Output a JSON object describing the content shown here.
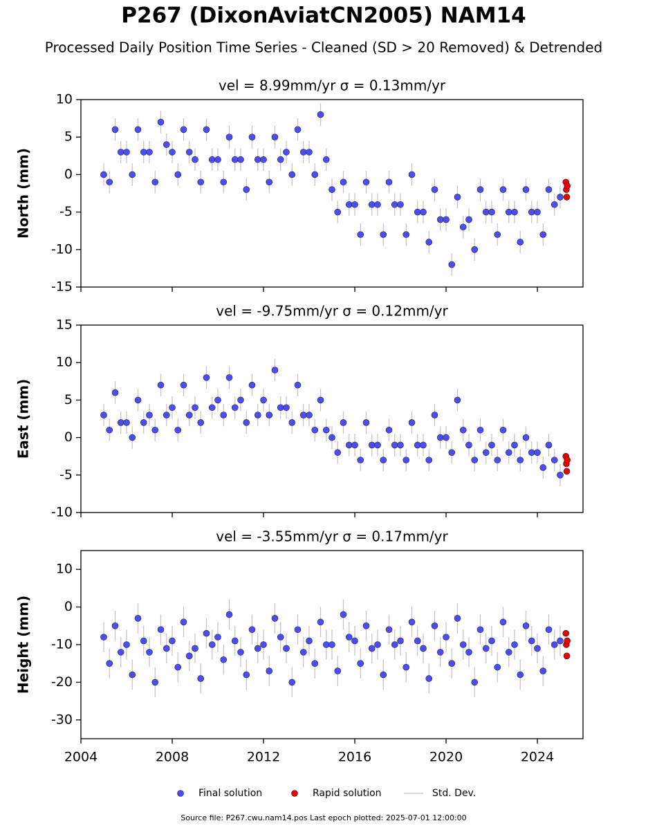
{
  "title": "P267 (DixonAviatCN2005) NAM14",
  "subtitle": "Processed Daily Position Time Series - Cleaned (SD > 20 Removed) & Detrended",
  "footer": "Source file: P267.cwu.nam14.pos  Last epoch plotted: 2025-07-01 12:00:00",
  "chart_data": [
    {
      "type": "scatter",
      "title": "vel = 8.99mm/yr   σ = 0.13mm/yr",
      "ylabel": "North (mm)",
      "xlim": [
        2004,
        2026
      ],
      "xticks": [
        2004,
        2008,
        2012,
        2016,
        2020,
        2024
      ],
      "ylim": [
        -15,
        10
      ],
      "yticks": [
        -15,
        -10,
        -5,
        0,
        5,
        10
      ],
      "series": [
        {
          "name": "Final solution",
          "color": "#4c4cff",
          "error_label": "Std. Dev.",
          "x": [
            2005,
            2005.25,
            2005.5,
            2005.75,
            2006,
            2006.25,
            2006.5,
            2006.75,
            2007,
            2007.25,
            2007.5,
            2007.75,
            2008,
            2008.25,
            2008.5,
            2008.75,
            2009,
            2009.25,
            2009.5,
            2009.75,
            2010,
            2010.25,
            2010.5,
            2010.75,
            2011,
            2011.25,
            2011.5,
            2011.75,
            2012,
            2012.25,
            2012.5,
            2012.75,
            2013,
            2013.25,
            2013.5,
            2013.75,
            2014,
            2014.25,
            2014.5,
            2014.75,
            2015,
            2015.25,
            2015.5,
            2015.75,
            2016,
            2016.25,
            2016.5,
            2016.75,
            2017,
            2017.25,
            2017.5,
            2017.75,
            2018,
            2018.25,
            2018.5,
            2018.75,
            2019,
            2019.25,
            2019.5,
            2019.75,
            2020,
            2020.25,
            2020.5,
            2020.75,
            2021,
            2021.25,
            2021.5,
            2021.75,
            2022,
            2022.25,
            2022.5,
            2022.75,
            2023,
            2023.25,
            2023.5,
            2023.75,
            2024,
            2024.25,
            2024.5,
            2024.75,
            2025
          ],
          "values": [
            0,
            -1,
            6,
            3,
            3,
            0,
            6,
            3,
            3,
            -1,
            7,
            4,
            3,
            0,
            6,
            3,
            2,
            -1,
            6,
            2,
            2,
            -1,
            5,
            2,
            2,
            -2,
            5,
            2,
            2,
            -1,
            5,
            2,
            3,
            0,
            6,
            3,
            3,
            0,
            8,
            2,
            -2,
            -5,
            -1,
            -4,
            -4,
            -8,
            -1,
            -4,
            -4,
            -8,
            -1,
            -4,
            -4,
            -8,
            0,
            -5,
            -5,
            -9,
            -2,
            -6,
            -6,
            -12,
            -3,
            -7,
            -6,
            -10,
            -2,
            -5,
            -5,
            -8,
            -2,
            -5,
            -5,
            -9,
            -2,
            -5,
            -5,
            -8,
            -2,
            -4,
            -3
          ],
          "errors": [
            1.5,
            1.5,
            1.5,
            1.5,
            1.5,
            1.5,
            1.5,
            1.5,
            1.5,
            1.5,
            1.5,
            1.5,
            1.5,
            1.5,
            1.5,
            1.5,
            1.5,
            1.5,
            1.5,
            1.5,
            1.5,
            1.5,
            1.5,
            1.5,
            1.5,
            1.5,
            1.5,
            1.5,
            1.5,
            1.5,
            1.5,
            1.5,
            1.5,
            1.5,
            1.5,
            1.5,
            1.5,
            1.5,
            1.5,
            1.5,
            1.5,
            1.5,
            1.5,
            1.5,
            1.5,
            1.5,
            1.5,
            1.5,
            1.5,
            1.5,
            1.5,
            1.5,
            1.5,
            1.5,
            1.5,
            1.5,
            1.5,
            1.5,
            1.5,
            1.5,
            1.5,
            1.5,
            1.5,
            1.5,
            1.5,
            1.5,
            1.5,
            1.5,
            1.5,
            1.5,
            1.5,
            1.5,
            1.5,
            1.5,
            1.5,
            1.5,
            1.5,
            1.5,
            1.5,
            1.5,
            1.5
          ]
        },
        {
          "name": "Rapid solution",
          "color": "#ee0000",
          "x": [
            2025.25,
            2025.27,
            2025.29,
            2025.31
          ],
          "values": [
            -1,
            -2,
            -3,
            -1.5
          ]
        }
      ]
    },
    {
      "type": "scatter",
      "title": "vel = -9.75mm/yr   σ = 0.12mm/yr",
      "ylabel": "East (mm)",
      "xlim": [
        2004,
        2026
      ],
      "xticks": [
        2004,
        2008,
        2012,
        2016,
        2020,
        2024
      ],
      "ylim": [
        -10,
        15
      ],
      "yticks": [
        -10,
        -5,
        0,
        5,
        10,
        15
      ],
      "series": [
        {
          "color": "#4c4cff",
          "x": [
            2005,
            2005.25,
            2005.5,
            2005.75,
            2006,
            2006.25,
            2006.5,
            2006.75,
            2007,
            2007.25,
            2007.5,
            2007.75,
            2008,
            2008.25,
            2008.5,
            2008.75,
            2009,
            2009.25,
            2009.5,
            2009.75,
            2010,
            2010.25,
            2010.5,
            2010.75,
            2011,
            2011.25,
            2011.5,
            2011.75,
            2012,
            2012.25,
            2012.5,
            2012.75,
            2013,
            2013.25,
            2013.5,
            2013.75,
            2014,
            2014.25,
            2014.5,
            2014.75,
            2015,
            2015.25,
            2015.5,
            2015.75,
            2016,
            2016.25,
            2016.5,
            2016.75,
            2017,
            2017.25,
            2017.5,
            2017.75,
            2018,
            2018.25,
            2018.5,
            2018.75,
            2019,
            2019.25,
            2019.5,
            2019.75,
            2020,
            2020.25,
            2020.5,
            2020.75,
            2021,
            2021.25,
            2021.5,
            2021.75,
            2022,
            2022.25,
            2022.5,
            2022.75,
            2023,
            2023.25,
            2023.5,
            2023.75,
            2024,
            2024.25,
            2024.5,
            2024.75,
            2025
          ],
          "values": [
            3,
            1,
            6,
            2,
            2,
            0,
            5,
            2,
            3,
            1,
            7,
            3,
            4,
            1,
            7,
            3,
            4,
            2,
            8,
            4,
            5,
            3,
            8,
            4,
            5,
            2,
            7,
            3,
            5,
            3,
            9,
            4,
            4,
            2,
            7,
            3,
            3,
            1,
            5,
            1,
            0,
            -2,
            2,
            -1,
            -1,
            -3,
            2,
            -1,
            -1,
            -3,
            1,
            -1,
            -1,
            -3,
            2,
            -1,
            -1,
            -3,
            3,
            0,
            0,
            -2,
            5,
            1,
            -1,
            -3,
            1,
            -2,
            -1,
            -3,
            1,
            -2,
            -1,
            -3,
            0,
            -2,
            -2,
            -4,
            -1,
            -3,
            -5
          ],
          "errors": [
            1.5,
            1.5,
            1.5,
            1.5,
            1.5,
            1.5,
            1.5,
            1.5,
            1.5,
            1.5,
            1.5,
            1.5,
            1.5,
            1.5,
            1.5,
            1.5,
            1.5,
            1.5,
            1.5,
            1.5,
            1.5,
            1.5,
            1.5,
            1.5,
            1.5,
            1.5,
            1.5,
            1.5,
            1.5,
            1.5,
            1.5,
            1.5,
            1.5,
            1.5,
            1.5,
            1.5,
            1.5,
            1.5,
            1.5,
            1.5,
            1.5,
            1.5,
            1.5,
            1.5,
            1.5,
            1.5,
            1.5,
            1.5,
            1.5,
            1.5,
            1.5,
            1.5,
            1.5,
            1.5,
            1.5,
            1.5,
            1.5,
            1.5,
            1.5,
            1.5,
            1.5,
            1.5,
            1.5,
            1.5,
            1.5,
            1.5,
            1.5,
            1.5,
            1.5,
            1.5,
            1.5,
            1.5,
            1.5,
            1.5,
            1.5,
            1.5,
            1.5,
            1.5,
            1.5,
            1.5,
            1.5
          ]
        },
        {
          "color": "#ee0000",
          "x": [
            2025.25,
            2025.27,
            2025.29,
            2025.31
          ],
          "values": [
            -2.5,
            -3.5,
            -4.5,
            -3
          ]
        }
      ]
    },
    {
      "type": "scatter",
      "title": "vel = -3.55mm/yr   σ = 0.17mm/yr",
      "ylabel": "Height (mm)",
      "xlim": [
        2004,
        2026
      ],
      "xticks": [
        2004,
        2008,
        2012,
        2016,
        2020,
        2024
      ],
      "ylim": [
        -35,
        15
      ],
      "yticks": [
        -30,
        -20,
        -10,
        0,
        10
      ],
      "series": [
        {
          "color": "#4c4cff",
          "x": [
            2005,
            2005.25,
            2005.5,
            2005.75,
            2006,
            2006.25,
            2006.5,
            2006.75,
            2007,
            2007.25,
            2007.5,
            2007.75,
            2008,
            2008.25,
            2008.5,
            2008.75,
            2009,
            2009.25,
            2009.5,
            2009.75,
            2010,
            2010.25,
            2010.5,
            2010.75,
            2011,
            2011.25,
            2011.5,
            2011.75,
            2012,
            2012.25,
            2012.5,
            2012.75,
            2013,
            2013.25,
            2013.5,
            2013.75,
            2014,
            2014.25,
            2014.5,
            2014.75,
            2015,
            2015.25,
            2015.5,
            2015.75,
            2016,
            2016.25,
            2016.5,
            2016.75,
            2017,
            2017.25,
            2017.5,
            2017.75,
            2018,
            2018.25,
            2018.5,
            2018.75,
            2019,
            2019.25,
            2019.5,
            2019.75,
            2020,
            2020.25,
            2020.5,
            2020.75,
            2021,
            2021.25,
            2021.5,
            2021.75,
            2022,
            2022.25,
            2022.5,
            2022.75,
            2023,
            2023.25,
            2023.5,
            2023.75,
            2024,
            2024.25,
            2024.5,
            2024.75,
            2025
          ],
          "values": [
            -8,
            -15,
            -5,
            -12,
            -10,
            -18,
            -3,
            -9,
            -12,
            -20,
            -6,
            -11,
            -9,
            -16,
            -4,
            -13,
            -11,
            -19,
            -7,
            -10,
            -8,
            -14,
            -2,
            -9,
            -12,
            -18,
            -6,
            -11,
            -10,
            -17,
            -3,
            -8,
            -11,
            -20,
            -6,
            -12,
            -9,
            -15,
            -4,
            -10,
            -10,
            -17,
            -2,
            -8,
            -9,
            -15,
            -5,
            -11,
            -10,
            -18,
            -6,
            -10,
            -9,
            -16,
            -4,
            -9,
            -11,
            -19,
            -5,
            -12,
            -8,
            -15,
            -3,
            -10,
            -12,
            -20,
            -6,
            -11,
            -9,
            -16,
            -4,
            -12,
            -10,
            -18,
            -5,
            -9,
            -11,
            -17,
            -6,
            -10,
            -9
          ],
          "errors": [
            4,
            4,
            4,
            4,
            4,
            4,
            4,
            4,
            4,
            4,
            4,
            4,
            4,
            4,
            4,
            4,
            4,
            4,
            4,
            4,
            4,
            4,
            4,
            4,
            4,
            4,
            4,
            4,
            4,
            4,
            4,
            4,
            4,
            4,
            4,
            4,
            4,
            4,
            4,
            4,
            4,
            4,
            4,
            4,
            4,
            4,
            4,
            4,
            4,
            4,
            4,
            4,
            4,
            4,
            4,
            4,
            4,
            4,
            4,
            4,
            4,
            4,
            4,
            4,
            4,
            4,
            4,
            4,
            4,
            4,
            4,
            4,
            4,
            4,
            4,
            4,
            4,
            4,
            4,
            4,
            4
          ]
        },
        {
          "color": "#ee0000",
          "x": [
            2025.25,
            2025.27,
            2025.29,
            2025.31
          ],
          "values": [
            -7,
            -10,
            -13,
            -9
          ]
        }
      ]
    }
  ]
}
